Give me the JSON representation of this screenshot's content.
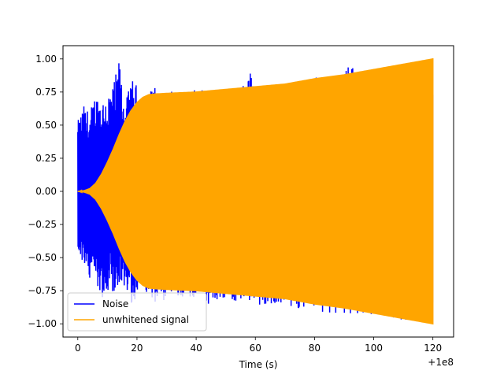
{
  "chart_data": {
    "type": "line",
    "title": "",
    "xlabel": "Time (s)",
    "ylabel": "",
    "x_offset_label": "+1e8",
    "xlim": [
      -5,
      127
    ],
    "ylim": [
      -1.1,
      1.1
    ],
    "x_ticks": [
      0,
      20,
      40,
      60,
      80,
      100,
      120
    ],
    "x_tick_labels": [
      "0",
      "20",
      "40",
      "60",
      "80",
      "100",
      "120"
    ],
    "y_ticks": [
      -1.0,
      -0.75,
      -0.5,
      -0.25,
      0.0,
      0.25,
      0.5,
      0.75,
      1.0
    ],
    "y_tick_labels": [
      "−1.00",
      "−0.75",
      "−0.50",
      "−0.25",
      "0.00",
      "0.25",
      "0.50",
      "0.75",
      "1.00"
    ],
    "grid": false,
    "legend_position": "lower-left",
    "series": [
      {
        "name": "Noise",
        "color": "#0000ff",
        "x_range": [
          0,
          120
        ],
        "upper_envelope": [
          [
            0,
            0.53
          ],
          [
            2,
            0.65
          ],
          [
            4,
            0.6
          ],
          [
            6,
            0.75
          ],
          [
            8,
            0.7
          ],
          [
            10,
            0.75
          ],
          [
            12,
            0.8
          ],
          [
            14,
            1.0
          ],
          [
            16,
            0.65
          ],
          [
            18,
            0.85
          ],
          [
            20,
            0.8
          ],
          [
            22,
            0.7
          ],
          [
            24,
            0.74
          ],
          [
            26,
            0.82
          ],
          [
            28,
            0.72
          ],
          [
            30,
            0.76
          ],
          [
            35,
            0.74
          ],
          [
            40,
            0.8
          ],
          [
            44,
            0.77
          ],
          [
            46,
            0.76
          ],
          [
            50,
            0.77
          ],
          [
            55,
            0.78
          ],
          [
            58,
            0.94
          ],
          [
            60,
            0.78
          ],
          [
            65,
            0.8
          ],
          [
            70,
            0.82
          ],
          [
            73,
            0.84
          ],
          [
            75,
            0.82
          ],
          [
            80,
            0.86
          ],
          [
            85,
            0.87
          ],
          [
            90,
            0.89
          ],
          [
            92,
            0.96
          ],
          [
            95,
            0.91
          ],
          [
            100,
            0.93
          ],
          [
            105,
            0.95
          ],
          [
            110,
            0.97
          ],
          [
            115,
            0.98
          ],
          [
            120,
            1.0
          ]
        ],
        "lower_envelope": [
          [
            0,
            -0.5
          ],
          [
            2,
            -0.55
          ],
          [
            4,
            -0.7
          ],
          [
            6,
            -0.65
          ],
          [
            8,
            -0.82
          ],
          [
            10,
            -0.75
          ],
          [
            12,
            -0.78
          ],
          [
            14,
            -0.72
          ],
          [
            16,
            -0.8
          ],
          [
            18,
            -0.85
          ],
          [
            20,
            -0.8
          ],
          [
            22,
            -0.76
          ],
          [
            24,
            -0.78
          ],
          [
            26,
            -0.84
          ],
          [
            28,
            -0.95
          ],
          [
            30,
            -0.79
          ],
          [
            35,
            -0.8
          ],
          [
            40,
            -0.81
          ],
          [
            44,
            -0.9
          ],
          [
            46,
            -0.82
          ],
          [
            50,
            -0.83
          ],
          [
            55,
            -0.84
          ],
          [
            60,
            -0.87
          ],
          [
            65,
            -0.86
          ],
          [
            70,
            -0.87
          ],
          [
            73,
            -0.9
          ],
          [
            75,
            -0.88
          ],
          [
            80,
            -0.9
          ],
          [
            85,
            -0.92
          ],
          [
            90,
            -0.93
          ],
          [
            95,
            -0.94
          ],
          [
            100,
            -0.95
          ],
          [
            105,
            -0.96
          ],
          [
            110,
            -0.97
          ],
          [
            115,
            -0.99
          ],
          [
            120,
            -1.0
          ]
        ]
      },
      {
        "name": "unwhitened signal",
        "color": "#ffa500",
        "x_range": [
          0,
          120
        ],
        "upper_envelope": [
          [
            0,
            0.0
          ],
          [
            2,
            0.005
          ],
          [
            4,
            0.02
          ],
          [
            6,
            0.06
          ],
          [
            8,
            0.13
          ],
          [
            10,
            0.22
          ],
          [
            12,
            0.32
          ],
          [
            14,
            0.43
          ],
          [
            16,
            0.53
          ],
          [
            18,
            0.61
          ],
          [
            20,
            0.67
          ],
          [
            22,
            0.71
          ],
          [
            24,
            0.73
          ],
          [
            26,
            0.735
          ],
          [
            30,
            0.74
          ],
          [
            40,
            0.75
          ],
          [
            50,
            0.77
          ],
          [
            60,
            0.79
          ],
          [
            70,
            0.81
          ],
          [
            80,
            0.85
          ],
          [
            90,
            0.88
          ],
          [
            100,
            0.92
          ],
          [
            110,
            0.96
          ],
          [
            120,
            1.0
          ]
        ],
        "lower_envelope": [
          [
            0,
            0.0
          ],
          [
            2,
            -0.005
          ],
          [
            4,
            -0.02
          ],
          [
            6,
            -0.06
          ],
          [
            8,
            -0.13
          ],
          [
            10,
            -0.22
          ],
          [
            12,
            -0.32
          ],
          [
            14,
            -0.43
          ],
          [
            16,
            -0.53
          ],
          [
            18,
            -0.61
          ],
          [
            20,
            -0.67
          ],
          [
            22,
            -0.71
          ],
          [
            24,
            -0.73
          ],
          [
            26,
            -0.735
          ],
          [
            30,
            -0.74
          ],
          [
            40,
            -0.75
          ],
          [
            50,
            -0.77
          ],
          [
            60,
            -0.79
          ],
          [
            70,
            -0.81
          ],
          [
            80,
            -0.85
          ],
          [
            90,
            -0.88
          ],
          [
            100,
            -0.92
          ],
          [
            110,
            -0.96
          ],
          [
            120,
            -1.0
          ]
        ]
      }
    ]
  }
}
